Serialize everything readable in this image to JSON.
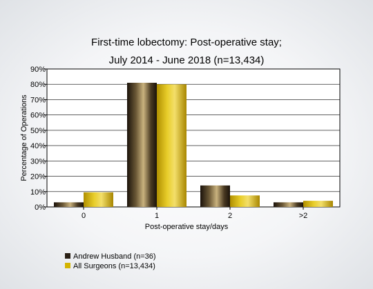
{
  "chart_data": {
    "type": "bar",
    "title": [
      "First-time lobectomy: Post-operative stay;",
      "July 2014 - June 2018 (n=13,434)"
    ],
    "xlabel": "Post-operative stay/days",
    "ylabel": "Percentage of Operations",
    "categories": [
      "0",
      "1",
      "2",
      ">2"
    ],
    "ylim": [
      0,
      90
    ],
    "yticks": [
      "0%",
      "10%",
      "20%",
      "30%",
      "40%",
      "50%",
      "60%",
      "70%",
      "80%",
      "90%"
    ],
    "grid": true,
    "legend_position": "bottom-left",
    "series": [
      {
        "name": "Andrew Husband (n=36)",
        "values": [
          3,
          81,
          14,
          3
        ],
        "color": "#2a1f14"
      },
      {
        "name": "All Surgeons (n=13,434)",
        "values": [
          9.5,
          80,
          7.5,
          4
        ],
        "color": "#d4b400"
      }
    ]
  }
}
